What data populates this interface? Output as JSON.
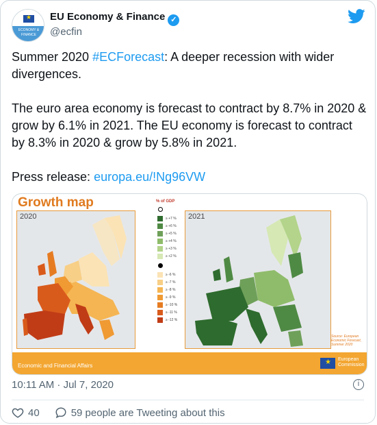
{
  "account": {
    "name": "EU Economy & Finance",
    "handle": "@ecfin",
    "avatar_text": "ECONOMY & FINANCE"
  },
  "tweet": {
    "line1_prefix": "Summer 2020 ",
    "hashtag": "#ECForecast",
    "line1_suffix": ": A deeper recession with wider divergences.",
    "paragraph2": "The euro area economy is forecast to contract by 8.7% in 2020 & grow by 6.1% in 2021. The EU economy is forecast to contract by 8.3% in 2020 & grow by 5.8% in 2021.",
    "press_label": "Press release: ",
    "press_link": "europa.eu/!Ng96VW"
  },
  "media": {
    "title": "Growth map",
    "year_left": "2020",
    "year_right": "2021",
    "legend_title": "% of GDP",
    "legend_positive": [
      {
        "label": "≥ +7 %",
        "color": "#2e6b2e"
      },
      {
        "label": "≥ +6 %",
        "color": "#4f8a44"
      },
      {
        "label": "≥ +5 %",
        "color": "#6fa05a"
      },
      {
        "label": "≥ +4 %",
        "color": "#8fbc6a"
      },
      {
        "label": "≥ +3 %",
        "color": "#b3d48a"
      },
      {
        "label": "≥ +2 %",
        "color": "#d6e8b4"
      }
    ],
    "legend_negative": [
      {
        "label": "≥ -6 %",
        "color": "#fbe3b5"
      },
      {
        "label": "≥ -7 %",
        "color": "#f8cf86"
      },
      {
        "label": "≥ -8 %",
        "color": "#f5b552"
      },
      {
        "label": "≥ -9 %",
        "color": "#f09a33"
      },
      {
        "label": "≥ -10 %",
        "color": "#e67c22"
      },
      {
        "label": "≥ -11 %",
        "color": "#d95b1c"
      },
      {
        "label": "≥ -12 %",
        "color": "#c03c16"
      }
    ],
    "source": "Source: European Economic Forecast, Summer 2020",
    "bottom_label": "Economic and Financial Affairs",
    "logo_text": "European Commission"
  },
  "meta": {
    "timestamp": "10:11 AM · Jul 7, 2020",
    "likes": "40",
    "retweet_text": "59 people are Tweeting about this"
  },
  "colors": {
    "accent": "#1d9bf0",
    "muted": "#536471"
  }
}
